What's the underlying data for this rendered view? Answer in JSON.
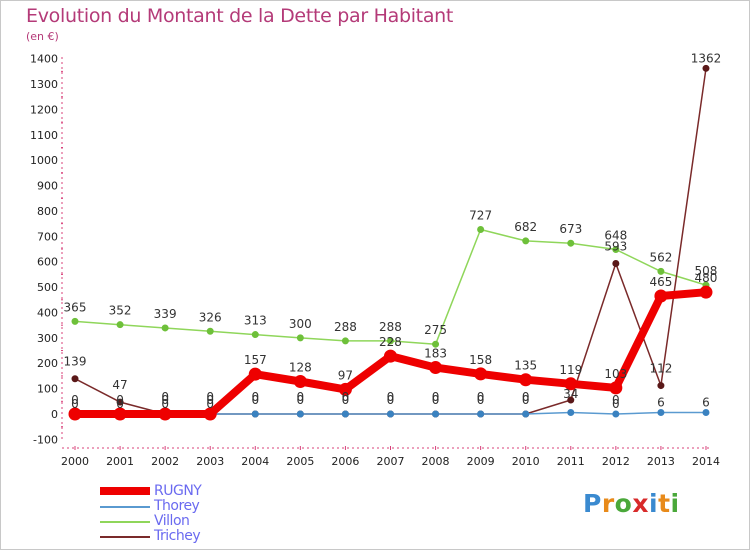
{
  "chart_data": {
    "type": "line",
    "title": "Evolution du Montant de la Dette par Habitant",
    "subtitle": "(en €)",
    "x": [
      "2000",
      "2001",
      "2002",
      "2003",
      "2004",
      "2005",
      "2006",
      "2007",
      "2008",
      "2009",
      "2010",
      "2011",
      "2012",
      "2013",
      "2014"
    ],
    "yticks": [
      "1400",
      "1300",
      "1200",
      "1100",
      "1000",
      "900",
      "800",
      "700",
      "600",
      "500",
      "400",
      "300",
      "200",
      "100",
      "0",
      "-100"
    ],
    "ylim": [
      -100,
      1400
    ],
    "grid": false,
    "legend_position": "bottom-left",
    "series": [
      {
        "name": "Villon",
        "color": "#8fd65a",
        "marker": "#6ec03a",
        "values": [
          365,
          352,
          339,
          326,
          313,
          300,
          288,
          288,
          275,
          727,
          682,
          673,
          648,
          562,
          508
        ],
        "labels": [
          "365",
          "352",
          "339",
          "326",
          "313",
          "300",
          "288",
          "288",
          "275",
          "727",
          "682",
          "673",
          "648",
          "562",
          "508"
        ]
      },
      {
        "name": "Trichey",
        "color": "#7a2a2a",
        "marker": "#5a1818",
        "values": [
          139,
          47,
          0,
          0,
          0,
          0,
          0,
          0,
          0,
          0,
          0,
          55,
          593,
          112,
          1362
        ],
        "labels": [
          "139",
          "47",
          "0",
          "0",
          "0",
          "0",
          "0",
          "0",
          "0",
          "0",
          "0",
          "",
          "593",
          "112",
          "1362"
        ]
      },
      {
        "name": "Thorey",
        "color": "#5a9ad0",
        "marker": "#3a82c0",
        "values": [
          0,
          0,
          0,
          0,
          0,
          0,
          0,
          0,
          0,
          0,
          0,
          6,
          0,
          6,
          6
        ],
        "labels": [
          "0",
          "0",
          "0",
          "0",
          "",
          "",
          "",
          "",
          "",
          "",
          "",
          "",
          "0",
          "6",
          "6"
        ]
      },
      {
        "name": "RUGNY",
        "color": "#ee0000",
        "marker": "#ee0000",
        "values": [
          0,
          0,
          0,
          0,
          157,
          128,
          97,
          228,
          183,
          158,
          135,
          119,
          103,
          465,
          480
        ],
        "labels": [
          "0",
          "0",
          "0",
          "0",
          "157",
          "128",
          "97",
          "228",
          "183",
          "158",
          "135",
          "119",
          "103",
          "465",
          "480"
        ]
      }
    ],
    "extra_labels": [
      "0",
      "0",
      "0",
      "0",
      "0",
      "0",
      "0",
      "0",
      "34"
    ]
  },
  "legend": {
    "items": [
      {
        "label": "RUGNY",
        "color": "#ee0000"
      },
      {
        "label": "Thorey",
        "color": "#5a9ad0"
      },
      {
        "label": "Villon",
        "color": "#8fd65a"
      },
      {
        "label": "Trichey",
        "color": "#7a2a2a"
      }
    ]
  },
  "logo": {
    "text": "Proxiti",
    "letters": [
      "P",
      "r",
      "o",
      "x",
      "i",
      "t",
      "i"
    ],
    "colors": [
      "#3a8ad0",
      "#e88a1a",
      "#4aa83a",
      "#d82a2a",
      "#3a8ad0",
      "#e88a1a",
      "#4aa83a"
    ]
  }
}
